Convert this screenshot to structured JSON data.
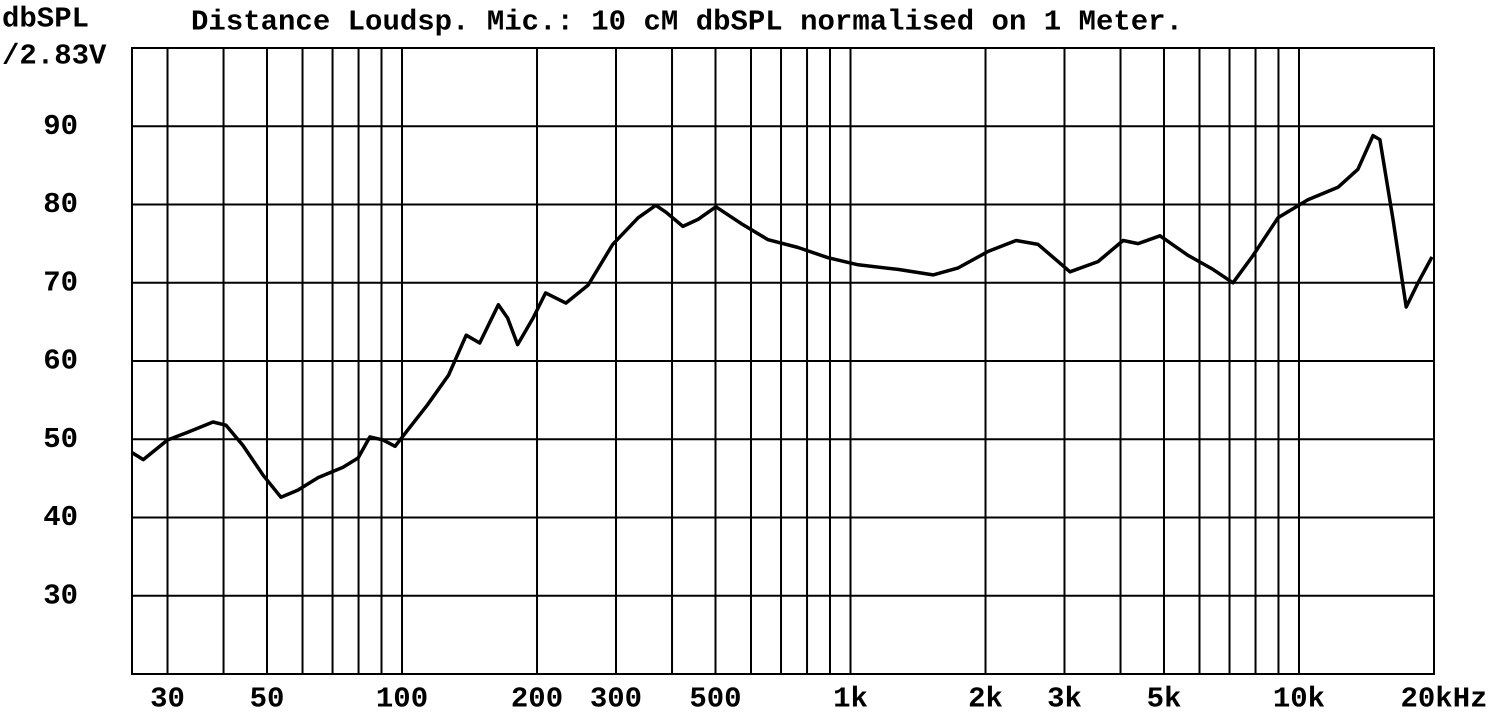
{
  "chart_data": {
    "type": "line",
    "title": "Distance Loudsp. Mic.: 10 cM dbSPL normalised on 1 Meter.",
    "y_label": [
      "dbSPL",
      "/2.83V"
    ],
    "log_x": true,
    "grid": true,
    "xlim": [
      25,
      20000
    ],
    "ylim": [
      20,
      100
    ],
    "xticks": [
      30,
      50,
      100,
      200,
      300,
      500,
      {
        "value": 1000,
        "label": "1k"
      },
      {
        "value": 2000,
        "label": "2k"
      },
      {
        "value": 3000,
        "label": "3k"
      },
      {
        "value": 5000,
        "label": "5k"
      },
      {
        "value": 10000,
        "label": "10k"
      },
      {
        "value": 20000,
        "label": "20kHz"
      }
    ],
    "x_minor_grid": [
      40,
      60,
      70,
      80,
      90,
      400,
      600,
      700,
      800,
      900,
      4000,
      6000,
      7000,
      8000,
      9000
    ],
    "yticks": [
      30,
      40,
      50,
      60,
      70,
      80,
      90
    ],
    "series": [
      {
        "color": "#000000",
        "x": [
          25,
          26.5,
          30,
          33.3,
          37.9,
          40.5,
          44.2,
          49,
          53.7,
          58.6,
          65,
          73.8,
          79.8,
          84.8,
          90.7,
          96.5,
          103,
          114,
          127,
          139,
          149,
          164,
          172,
          181,
          196,
          209,
          232,
          260,
          295,
          336,
          368,
          388,
          423,
          457,
          501,
          576,
          655,
          764,
          891,
          1040,
          1276,
          1528,
          1738,
          2028,
          2340,
          2620,
          3086,
          3563,
          4053,
          4378,
          4900,
          5660,
          6430,
          7125,
          7900,
          8980,
          10470,
          12220,
          13530,
          14620,
          15150,
          16200,
          17340,
          18420,
          19800
        ],
        "values": [
          48.3,
          47.4,
          49.9,
          50.9,
          52.2,
          51.8,
          49.2,
          45.4,
          42.6,
          43.5,
          45.1,
          46.4,
          47.6,
          50.3,
          49.9,
          49.1,
          51.2,
          54.4,
          58.2,
          63.3,
          62.3,
          67.2,
          65.5,
          62.1,
          65.5,
          68.7,
          67.4,
          69.7,
          74.9,
          78.3,
          79.9,
          79,
          77.2,
          78.1,
          79.7,
          77.4,
          75.5,
          74.5,
          73.2,
          72.3,
          71.7,
          71,
          71.9,
          74,
          75.4,
          74.9,
          71.4,
          72.7,
          75.4,
          75,
          76,
          73.5,
          71.7,
          70,
          73.5,
          78.3,
          80.6,
          82.2,
          84.5,
          88.8,
          88.3,
          78.1,
          66.9,
          70,
          73.3
        ]
      }
    ]
  }
}
